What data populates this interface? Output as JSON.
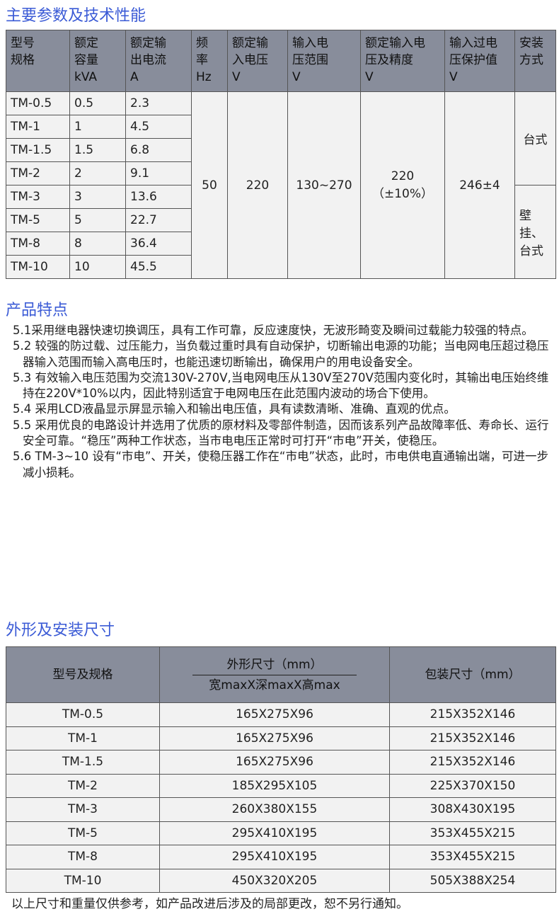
{
  "section1": {
    "title": "主要参数及技术性能",
    "headers": [
      "型号\n规格",
      "额定\n容量\nkVA",
      "额定输\n出电流\nA",
      "频\n率\nHz",
      "额定输\n入电压\nV",
      "输入电\n压范围\nV",
      "额定输入电\n压及精度\nV",
      "输入过电\n压保护值\nV",
      "安装\n方式"
    ],
    "rows": [
      [
        "TM-0.5",
        "0.5",
        "2.3"
      ],
      [
        "TM-1",
        "1",
        "4.5"
      ],
      [
        "TM-1.5",
        "1.5",
        "6.8"
      ],
      [
        "TM-2",
        "2",
        "9.1"
      ],
      [
        "TM-3",
        "3",
        "13.6"
      ],
      [
        "TM-5",
        "5",
        "22.7"
      ],
      [
        "TM-8",
        "8",
        "36.4"
      ],
      [
        "TM-10",
        "10",
        "45.5"
      ]
    ],
    "frequency": "50",
    "rated_input": "220",
    "input_range": "130~270",
    "accuracy_value": "220",
    "accuracy_tolerance": "（±10%）",
    "overvoltage": "246±4",
    "mount_a": "台式",
    "mount_b": "壁挂、\n台式"
  },
  "section2": {
    "title": "产品特点",
    "items": [
      "5.1采用继电器快速切换调压，具有工作可靠，反应速度快，无波形畸变及瞬间过载能力较强的特点。",
      "5.2 较强的防过载、过压能力，当负载过重时具有自动保护，切断输出电源的功能；当电网电压超过稳压器输入范围而输入高电压时，也能迅速切断输出，确保用户的用电设备安全。",
      "5.3 有效输入电压范围为交流130V-270V,当电网电压从130V至270V范围内变化时，其输出电压始终维持在220V*10%以内，因此特别适宜于电网电压在此范围内波动的场合下使用。",
      "5.4 采用LCD液晶显示屏显示输入和输出电压值，具有读数清晰、准确、直观的优点。",
      "5.5 采用优良的电路设计并选用了优质的原材料及零部件制造，因而该系列产品故障率低、寿命长、运行安全可靠。“稳压”两种工作状态，当市电电压正常时可打开“市电”开关，使稳压。",
      "5.6 TM-3~10 设有“市电”、开关，使稳压器工作在“市电”状态，此时，市电供电直通输出端，可进一步减小损耗。"
    ]
  },
  "section3": {
    "title": "外形及安装尺寸",
    "headers": {
      "model": "型号及规格",
      "outline_top": "外形尺寸（mm）",
      "outline_bottom": "宽maxX深maxX高max",
      "package": "包装尺寸（mm）"
    },
    "rows": [
      [
        "TM-0.5",
        "165X275X96",
        "215X352X146"
      ],
      [
        "TM-1",
        "165X275X96",
        "215X352X146"
      ],
      [
        "TM-1.5",
        "165X275X96",
        "215X352X146"
      ],
      [
        "TM-2",
        "185X295X105",
        "225X370X150"
      ],
      [
        "TM-3",
        "260X380X155",
        "308X430X195"
      ],
      [
        "TM-5",
        "295X410X195",
        "353X455X215"
      ],
      [
        "TM-8",
        "295X410X195",
        "353X455X215"
      ],
      [
        "TM-10",
        "450X320X205",
        "505X388X254"
      ]
    ],
    "note": "以上尺寸和重量仅供参考，如产品改进后涉及的局部更改，恕不另行通知。"
  }
}
